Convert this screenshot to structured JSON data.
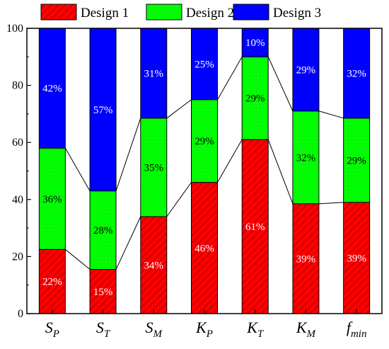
{
  "chart_data": {
    "type": "bar",
    "stacked": true,
    "categories": [
      {
        "base": "S",
        "sub": "P"
      },
      {
        "base": "S",
        "sub": "T"
      },
      {
        "base": "S",
        "sub": "M"
      },
      {
        "base": "K",
        "sub": "P"
      },
      {
        "base": "K",
        "sub": "T"
      },
      {
        "base": "K",
        "sub": "M"
      },
      {
        "base": "f",
        "sub": "min"
      }
    ],
    "series": [
      {
        "name": "Design 1",
        "values": [
          22.5,
          15.5,
          34,
          46,
          61,
          38.5,
          39
        ],
        "labels": [
          "22%",
          "15%",
          "34%",
          "46%",
          "61%",
          "39%",
          "39%"
        ],
        "color": "#ff0000",
        "pattern": "hatch",
        "label_color": "#ffffff"
      },
      {
        "name": "Design 2",
        "values": [
          35.5,
          27.5,
          34.5,
          29,
          29,
          32.5,
          29.5
        ],
        "labels": [
          "36%",
          "28%",
          "35%",
          "29%",
          "29%",
          "32%",
          "29%"
        ],
        "color": "#00ff00",
        "pattern": "dots",
        "label_color": "#000000"
      },
      {
        "name": "Design 3",
        "values": [
          42,
          57,
          31.5,
          25,
          10,
          29,
          31.5
        ],
        "labels": [
          "42%",
          "57%",
          "31%",
          "25%",
          "10%",
          "29%",
          "32%"
        ],
        "color": "#0000ff",
        "pattern": "none",
        "label_color": "#ffffff"
      }
    ],
    "ylim": [
      0,
      100
    ],
    "yticks": [
      "0",
      "20",
      "40",
      "60",
      "80",
      "100"
    ],
    "legend_position": "top",
    "connector_lines": true,
    "grid": false
  }
}
